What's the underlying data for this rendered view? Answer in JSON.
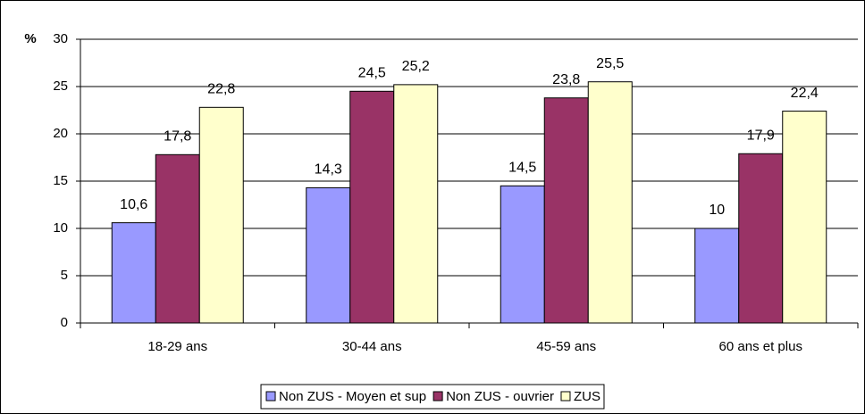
{
  "chart_data": {
    "type": "bar",
    "y_label": "%",
    "categories": [
      "18-29 ans",
      "30-44 ans",
      "45-59 ans",
      "60 ans et plus"
    ],
    "series": [
      {
        "name": "Non ZUS - Moyen et sup",
        "color": "#9999ff",
        "values": [
          10.6,
          14.3,
          14.5,
          10
        ],
        "value_labels": [
          "10,6",
          "14,3",
          "14,5",
          "10"
        ]
      },
      {
        "name": "Non ZUS - ouvrier",
        "color": "#993366",
        "values": [
          17.8,
          24.5,
          23.8,
          17.9
        ],
        "value_labels": [
          "17,8",
          "24,5",
          "23,8",
          "17,9"
        ]
      },
      {
        "name": "ZUS",
        "color": "#ffffcc",
        "values": [
          22.8,
          25.2,
          25.5,
          22.4
        ],
        "value_labels": [
          "22,8",
          "25,2",
          "25,5",
          "22,4"
        ]
      }
    ],
    "ylim": [
      0,
      30
    ],
    "yticks": [
      0,
      5,
      10,
      15,
      20,
      25,
      30
    ],
    "grid": true
  }
}
